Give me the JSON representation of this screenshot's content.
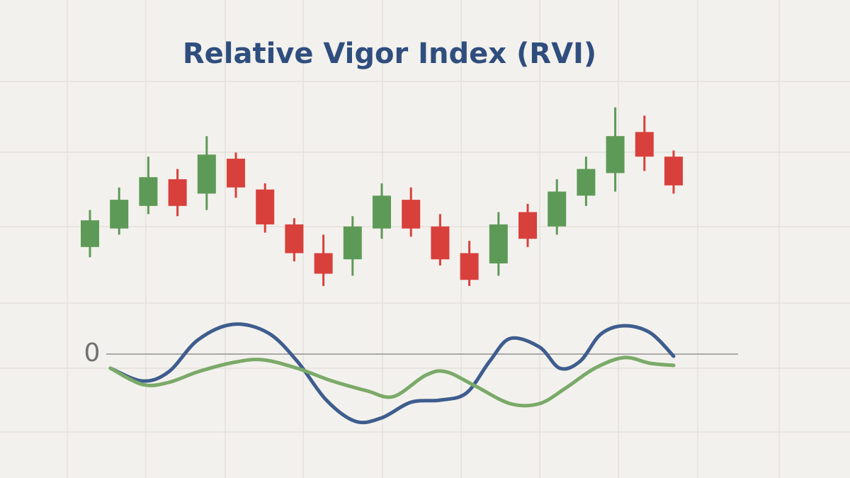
{
  "chart_data": [
    {
      "type": "candlestick",
      "title": "Relative Vigor Index (RVI)",
      "x": [
        1,
        2,
        3,
        4,
        5,
        6,
        7,
        8,
        9,
        10,
        11,
        12,
        13,
        14,
        15,
        16,
        17,
        18,
        19,
        20,
        21
      ],
      "open": [
        28,
        37,
        48,
        61,
        54,
        71,
        56,
        39,
        25,
        22,
        37,
        51,
        38,
        25,
        20,
        45,
        38,
        53,
        64,
        84,
        72
      ],
      "high": [
        46,
        57,
        72,
        66,
        82,
        74,
        59,
        42,
        34,
        43,
        59,
        57,
        44,
        31,
        45,
        49,
        61,
        72,
        96,
        92,
        75
      ],
      "low": [
        23,
        34,
        44,
        43,
        46,
        52,
        35,
        21,
        9,
        14,
        32,
        33,
        19,
        9,
        14,
        28,
        34,
        48,
        55,
        65,
        54
      ],
      "close": [
        41,
        51,
        62,
        48,
        73,
        57,
        39,
        25,
        15,
        38,
        53,
        37,
        22,
        12,
        39,
        32,
        55,
        66,
        82,
        72,
        58
      ],
      "up_color": "#5e9a57",
      "down_color": "#d8403c",
      "xlim": [
        1,
        21
      ],
      "ylim": [
        0,
        100
      ]
    },
    {
      "type": "line",
      "xlim": [
        1,
        21
      ],
      "ylim": [
        -1.1,
        0.6
      ],
      "yticks": [
        0
      ],
      "series": [
        {
          "color": "#3e5d8e",
          "x": [
            1.7,
            2.8,
            3.7,
            4.7,
            5.9,
            7.1,
            8.1,
            9.1,
            10.1,
            11.0,
            12.0,
            13.0,
            13.9,
            14.7,
            15.4,
            16.4,
            17.1,
            17.8,
            18.5,
            19.3,
            20.2,
            21.0
          ],
          "values": [
            -0.2,
            -0.38,
            -0.25,
            0.2,
            0.42,
            0.3,
            -0.1,
            -0.65,
            -0.95,
            -0.9,
            -0.68,
            -0.65,
            -0.55,
            -0.1,
            0.22,
            0.1,
            -0.2,
            -0.1,
            0.28,
            0.4,
            0.3,
            -0.03
          ]
        },
        {
          "color": "#7aaa69",
          "x": [
            1.7,
            2.8,
            3.7,
            4.7,
            5.9,
            6.9,
            8.1,
            9.3,
            10.5,
            11.4,
            12.5,
            13.2,
            14.2,
            15.4,
            16.4,
            17.3,
            18.3,
            19.3,
            20.2,
            21.0
          ],
          "values": [
            -0.2,
            -0.43,
            -0.4,
            -0.25,
            -0.12,
            -0.08,
            -0.2,
            -0.38,
            -0.52,
            -0.6,
            -0.3,
            -0.25,
            -0.45,
            -0.7,
            -0.7,
            -0.48,
            -0.2,
            -0.05,
            -0.13,
            -0.16
          ]
        }
      ]
    }
  ]
}
